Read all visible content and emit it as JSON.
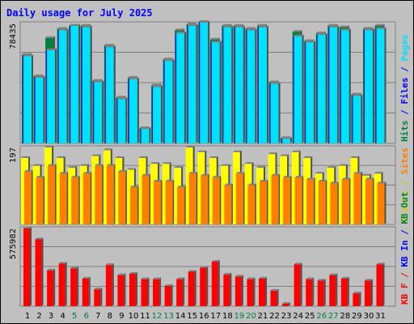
{
  "chart_data": {
    "type": "bar",
    "title": "Daily usage for July 2025",
    "categories": [
      "1",
      "2",
      "3",
      "4",
      "5",
      "6",
      "7",
      "8",
      "9",
      "10",
      "11",
      "12",
      "13",
      "14",
      "15",
      "16",
      "17",
      "18",
      "19",
      "20",
      "21",
      "22",
      "23",
      "24",
      "25",
      "26",
      "27",
      "28",
      "29",
      "30",
      "31"
    ],
    "weekend_days": [
      "5",
      "6",
      "12",
      "13",
      "19",
      "20",
      "26",
      "27"
    ],
    "panels": [
      {
        "id": "hits",
        "max_label": "78435",
        "ymax": 78435,
        "legend": [
          {
            "text": "Hits",
            "color": "#008040"
          },
          {
            "text": "/",
            "color": "#0000ff"
          },
          {
            "text": "Files",
            "color": "#0000ff"
          },
          {
            "text": "/",
            "color": "#0000ff"
          },
          {
            "text": "Pages",
            "color": "#00e0ff"
          }
        ],
        "series": [
          {
            "name": "Hits",
            "color": "#008040",
            "values": [
              58000,
              44000,
              69000,
              75000,
              77000,
              77000,
              41000,
              64000,
              30000,
              43000,
              10000,
              38000,
              55000,
              74000,
              78000,
              79500,
              68000,
              77000,
              77000,
              75000,
              77000,
              40000,
              3500,
              73000,
              67000,
              72000,
              77000,
              76000,
              32000,
              75000,
              77000
            ]
          },
          {
            "name": "Files",
            "color": "#0000ff",
            "values": [
              57000,
              43000,
              61000,
              74000,
              77000,
              76000,
              40000,
              63000,
              29000,
              42000,
              9500,
              37000,
              54000,
              72000,
              77000,
              79000,
              66000,
              76000,
              76000,
              74000,
              76000,
              39000,
              3000,
              70000,
              66000,
              71000,
              76000,
              74000,
              31000,
              74000,
              75000
            ]
          },
          {
            "name": "Pages",
            "color": "#00e0ff",
            "values": [
              57000,
              43000,
              61000,
              74000,
              77000,
              76000,
              40000,
              63000,
              29000,
              42000,
              9500,
              37000,
              54000,
              72000,
              77000,
              79000,
              66000,
              76000,
              76000,
              74000,
              76000,
              39000,
              3000,
              70000,
              66000,
              71000,
              76000,
              74000,
              31000,
              74000,
              75000
            ]
          }
        ]
      },
      {
        "id": "visits",
        "max_label": "197",
        "ymax": 197,
        "legend": [
          {
            "text": "Visits",
            "color": "#d0d000"
          },
          {
            "text": "/",
            "color": "#d0d000"
          },
          {
            "text": "Sites",
            "color": "#ff8000"
          }
        ],
        "series": [
          {
            "name": "Visits",
            "color": "#ffff00",
            "values": [
              170,
              150,
              197,
              170,
              145,
              150,
              175,
              190,
              170,
              140,
              170,
              155,
              155,
              145,
              197,
              185,
              170,
              150,
              185,
              155,
              145,
              180,
              175,
              185,
              170,
              130,
              145,
              150,
              170,
              125,
              130
            ]
          },
          {
            "name": "Sites",
            "color": "#ff8000",
            "values": [
              135,
              120,
              150,
              130,
              120,
              130,
              150,
              150,
              135,
              95,
              125,
              110,
              110,
              95,
              130,
              125,
              120,
              100,
              130,
              100,
              110,
              125,
              120,
              120,
              115,
              110,
              105,
              115,
              130,
              115,
              105
            ]
          }
        ]
      },
      {
        "id": "kbytes",
        "max_label": "575982",
        "ymax": 575982,
        "legend": [
          {
            "text": "KB F",
            "color": "#ff0000"
          },
          {
            "text": "/",
            "color": "#ff0000"
          },
          {
            "text": "KB In",
            "color": "#0000ff"
          },
          {
            "text": "/",
            "color": "#0000ff"
          },
          {
            "text": "KB Out",
            "color": "#008040"
          }
        ],
        "series": [
          {
            "name": "KB F",
            "color": "#ff0000",
            "values": [
              575982,
              495000,
              265000,
              315000,
              280000,
              205000,
              125000,
              305000,
              230000,
              240000,
              200000,
              200000,
              150000,
              200000,
              255000,
              285000,
              330000,
              235000,
              220000,
              200000,
              205000,
              115000,
              18000,
              310000,
              200000,
              190000,
              230000,
              205000,
              95000,
              190000,
              310000
            ]
          }
        ]
      }
    ]
  }
}
